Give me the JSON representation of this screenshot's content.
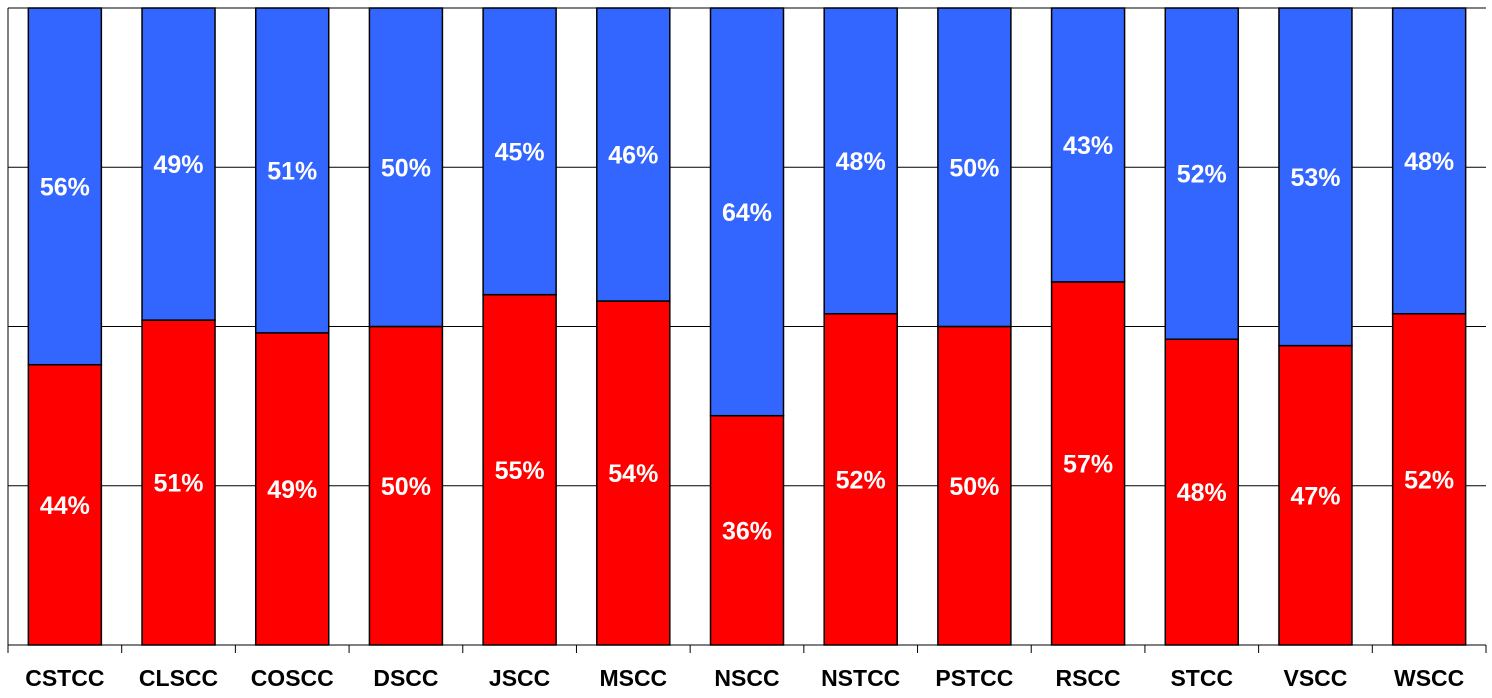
{
  "chart_data": {
    "type": "bar",
    "stacked": "percent",
    "categories": [
      "CSTCC",
      "CLSCC",
      "COSCC",
      "DSCC",
      "JSCC",
      "MSCC",
      "NSCC",
      "NSTCC",
      "PSTCC",
      "RSCC",
      "STCC",
      "VSCC",
      "WSCC"
    ],
    "series": [
      {
        "color": "#ff0000",
        "values": [
          44,
          51,
          49,
          50,
          55,
          54,
          36,
          52,
          50,
          57,
          48,
          47,
          52
        ]
      },
      {
        "color": "#3366ff",
        "values": [
          56,
          49,
          51,
          50,
          45,
          46,
          64,
          48,
          50,
          43,
          52,
          53,
          48
        ]
      }
    ],
    "labels_bottom": [
      "44%",
      "51%",
      "49%",
      "50%",
      "55%",
      "54%",
      "36%",
      "52%",
      "50%",
      "57%",
      "48%",
      "47%",
      "52%"
    ],
    "labels_top": [
      "56%",
      "49%",
      "51%",
      "50%",
      "45%",
      "46%",
      "64%",
      "48%",
      "50%",
      "43%",
      "52%",
      "53%",
      "48%"
    ],
    "ylim": [
      0,
      100
    ],
    "grid": true,
    "legend": "none"
  }
}
